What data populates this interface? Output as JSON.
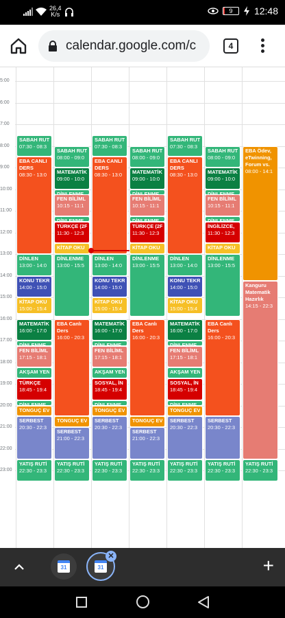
{
  "status": {
    "net_speed_value": "26,4",
    "net_speed_unit": "K/s",
    "battery": "9",
    "battery_level": 0.09,
    "time": "12:48"
  },
  "browser": {
    "url": "calendar.google.com/c",
    "tab_count": "4"
  },
  "hours": [
    "5:00",
    "6:00",
    "7:00",
    "8:00",
    "9:00",
    "10:00",
    "11:00",
    "12:00",
    "13:00",
    "14:00",
    "15:00",
    "16:00",
    "17:00",
    "18:00",
    "19:00",
    "20:00",
    "21:00",
    "22:00",
    "23:00"
  ],
  "events": [
    {
      "col": 0,
      "title": "SABAH RUT",
      "time": "07:30 - 08:3",
      "start": 7.5,
      "end": 8.5,
      "color": "#33b679"
    },
    {
      "col": 0,
      "title": "EBA CANLI",
      "sub": "DERS",
      "time": "08:30 - 13:0",
      "start": 8.5,
      "end": 13.0,
      "color": "#f4511e"
    },
    {
      "col": 0,
      "title": "DİNLEN",
      "time": "13:00 - 14:0",
      "start": 13.0,
      "end": 14.0,
      "color": "#33b679"
    },
    {
      "col": 0,
      "title": "KONU TEKR",
      "time": "14:00 - 15:0",
      "start": 14.0,
      "end": 15.0,
      "color": "#3f51b5"
    },
    {
      "col": 0,
      "title": "KİTAP OKU",
      "time": "15:00 - 15:4",
      "start": 15.0,
      "end": 15.75,
      "color": "#f6bf26"
    },
    {
      "col": 0,
      "title": "MATEMATİK",
      "time": "16:00 - 17:0",
      "start": 16.0,
      "end": 17.0,
      "color": "#0b8043"
    },
    {
      "col": 0,
      "title": "DİNLENME",
      "start": 17.0,
      "end": 17.25,
      "color": "#33b679"
    },
    {
      "col": 0,
      "title": "FEN BİLİML",
      "time": "17:15 - 18:1",
      "start": 17.25,
      "end": 18.25,
      "color": "#e67c73"
    },
    {
      "col": 0,
      "title": "AKŞAM YEN",
      "start": 18.25,
      "end": 18.75,
      "color": "#33b679"
    },
    {
      "col": 0,
      "title": "TÜRKÇE",
      "time": "18:45 - 19:4",
      "start": 18.75,
      "end": 19.75,
      "color": "#d50000"
    },
    {
      "col": 0,
      "title": "DİNLENME",
      "start": 19.75,
      "end": 20.0,
      "color": "#33b679"
    },
    {
      "col": 0,
      "title": "TONGUÇ EV",
      "start": 20.0,
      "end": 20.5,
      "color": "#f09300"
    },
    {
      "col": 0,
      "title": "SERBEST",
      "time": "20:30 - 22:3",
      "start": 20.5,
      "end": 22.5,
      "color": "#7986cb"
    },
    {
      "col": 0,
      "title": "YATIŞ RUTİ",
      "time": "22:30 - 23:3",
      "start": 22.5,
      "end": 23.5,
      "color": "#33b679"
    },
    {
      "col": 1,
      "title": "SABAH RUT",
      "time": "08:00 - 09:0",
      "start": 8.0,
      "end": 9.0,
      "color": "#33b679"
    },
    {
      "col": 1,
      "title": "MATEMATİK",
      "time": "09:00 - 10:0",
      "start": 9.0,
      "end": 10.0,
      "color": "#0b8043"
    },
    {
      "col": 1,
      "title": "DİNLENME",
      "start": 10.0,
      "end": 10.25,
      "color": "#33b679"
    },
    {
      "col": 1,
      "title": "FEN BİLİML",
      "time": "10:15 - 11:1",
      "start": 10.25,
      "end": 11.25,
      "color": "#e67c73"
    },
    {
      "col": 1,
      "title": "DİNLENME",
      "start": 11.25,
      "end": 11.5,
      "color": "#33b679"
    },
    {
      "col": 1,
      "title": "TÜRKÇE (2F",
      "time": "11:30 - 12:3",
      "start": 11.5,
      "end": 12.5,
      "color": "#d50000"
    },
    {
      "col": 1,
      "title": "KİTAP OKU",
      "start": 12.5,
      "end": 13.0,
      "color": "#f6bf26"
    },
    {
      "col": 1,
      "title": "DİNLENME",
      "time": "13:00 - 15:5",
      "start": 13.0,
      "end": 15.9,
      "color": "#33b679"
    },
    {
      "col": 1,
      "title": "EBA Canlı",
      "sub": "Ders",
      "time": "16:00 - 20:3",
      "start": 16.0,
      "end": 20.5,
      "color": "#f4511e"
    },
    {
      "col": 1,
      "title": "TONGUÇ EV",
      "start": 20.5,
      "end": 21.0,
      "color": "#f09300"
    },
    {
      "col": 1,
      "title": "SERBEST",
      "time": "21:00 - 22:3",
      "start": 21.0,
      "end": 22.5,
      "color": "#7986cb"
    },
    {
      "col": 1,
      "title": "YATIŞ RUTİ",
      "time": "22:30 - 23:3",
      "start": 22.5,
      "end": 23.5,
      "color": "#33b679"
    },
    {
      "col": 2,
      "title": "SABAH RUT",
      "time": "07:30 - 08:3",
      "start": 7.5,
      "end": 8.5,
      "color": "#33b679"
    },
    {
      "col": 2,
      "title": "EBA CANLI",
      "sub": "DERS",
      "time": "08:30 - 13:0",
      "start": 8.5,
      "end": 13.0,
      "color": "#f4511e"
    },
    {
      "col": 2,
      "title": "DİNLEN",
      "time": "13:00 - 14:0",
      "start": 13.0,
      "end": 14.0,
      "color": "#33b679"
    },
    {
      "col": 2,
      "title": "KONU TEKR",
      "time": "14:00 - 15:0",
      "start": 14.0,
      "end": 15.0,
      "color": "#3f51b5"
    },
    {
      "col": 2,
      "title": "KİTAP OKU",
      "time": "15:00 - 15:4",
      "start": 15.0,
      "end": 15.75,
      "color": "#f6bf26"
    },
    {
      "col": 2,
      "title": "MATEMATİK",
      "time": "16:00 - 17:0",
      "start": 16.0,
      "end": 17.0,
      "color": "#0b8043"
    },
    {
      "col": 2,
      "title": "DİNLENME",
      "start": 17.0,
      "end": 17.25,
      "color": "#33b679"
    },
    {
      "col": 2,
      "title": "FEN BİLİML",
      "time": "17:15 - 18:1",
      "start": 17.25,
      "end": 18.25,
      "color": "#e67c73"
    },
    {
      "col": 2,
      "title": "AKŞAM YEN",
      "start": 18.25,
      "end": 18.75,
      "color": "#33b679"
    },
    {
      "col": 2,
      "title": "SOSYAL, İN",
      "time": "18:45 - 19:4",
      "start": 18.75,
      "end": 19.75,
      "color": "#d50000"
    },
    {
      "col": 2,
      "title": "DİNLENME",
      "start": 19.75,
      "end": 20.0,
      "color": "#33b679"
    },
    {
      "col": 2,
      "title": "TONGUÇ EV",
      "start": 20.0,
      "end": 20.5,
      "color": "#f09300"
    },
    {
      "col": 2,
      "title": "SERBEST",
      "time": "20:30 - 22:3",
      "start": 20.5,
      "end": 22.5,
      "color": "#7986cb"
    },
    {
      "col": 2,
      "title": "YATIŞ RUTİ",
      "time": "22:30 - 23:3",
      "start": 22.5,
      "end": 23.5,
      "color": "#33b679"
    },
    {
      "col": 3,
      "title": "SABAH RUT",
      "time": "08:00 - 09:0",
      "start": 8.0,
      "end": 9.0,
      "color": "#33b679"
    },
    {
      "col": 3,
      "title": "MATEMATİK",
      "time": "09:00 - 10:0",
      "start": 9.0,
      "end": 10.0,
      "color": "#0b8043"
    },
    {
      "col": 3,
      "title": "DİNLENME",
      "start": 10.0,
      "end": 10.25,
      "color": "#33b679"
    },
    {
      "col": 3,
      "title": "FEN BİLİML",
      "time": "10:15 - 11:1",
      "start": 10.25,
      "end": 11.25,
      "color": "#e67c73"
    },
    {
      "col": 3,
      "title": "DİNLENME",
      "start": 11.25,
      "end": 11.5,
      "color": "#33b679"
    },
    {
      "col": 3,
      "title": "TÜRKÇE (2F",
      "time": "11:30 - 12:3",
      "start": 11.5,
      "end": 12.5,
      "color": "#d50000"
    },
    {
      "col": 3,
      "title": "KİTAP OKU",
      "start": 12.5,
      "end": 13.0,
      "color": "#f6bf26"
    },
    {
      "col": 3,
      "title": "DİNLENME",
      "time": "13:00 - 15:5",
      "start": 13.0,
      "end": 15.9,
      "color": "#33b679"
    },
    {
      "col": 3,
      "title": "EBA Canlı",
      "sub": "Ders",
      "time": "16:00 - 20:3",
      "start": 16.0,
      "end": 20.5,
      "color": "#f4511e"
    },
    {
      "col": 3,
      "title": "TONGUÇ EV",
      "start": 20.5,
      "end": 21.0,
      "color": "#f09300"
    },
    {
      "col": 3,
      "title": "SERBEST",
      "time": "21:00 - 22:3",
      "start": 21.0,
      "end": 22.5,
      "color": "#7986cb"
    },
    {
      "col": 3,
      "title": "YATIŞ RUTİ",
      "time": "22:30 - 23:3",
      "start": 22.5,
      "end": 23.5,
      "color": "#33b679"
    },
    {
      "col": 4,
      "title": "SABAH RUT",
      "time": "07:30 - 08:3",
      "start": 7.5,
      "end": 8.5,
      "color": "#33b679"
    },
    {
      "col": 4,
      "title": "EBA CANLI",
      "sub": "DERS",
      "time": "08:30 - 13:0",
      "start": 8.5,
      "end": 13.0,
      "color": "#f4511e"
    },
    {
      "col": 4,
      "title": "DİNLEN",
      "time": "13:00 - 14:0",
      "start": 13.0,
      "end": 14.0,
      "color": "#33b679"
    },
    {
      "col": 4,
      "title": "KONU TEKR",
      "time": "14:00 - 15:0",
      "start": 14.0,
      "end": 15.0,
      "color": "#3f51b5"
    },
    {
      "col": 4,
      "title": "KİTAP OKU",
      "time": "15:00 - 15:4",
      "start": 15.0,
      "end": 15.75,
      "color": "#f6bf26"
    },
    {
      "col": 4,
      "title": "MATEMATİK",
      "time": "16:00 - 17:0",
      "start": 16.0,
      "end": 17.0,
      "color": "#0b8043"
    },
    {
      "col": 4,
      "title": "DİNLENME",
      "start": 17.0,
      "end": 17.25,
      "color": "#33b679"
    },
    {
      "col": 4,
      "title": "FEN BİLİML",
      "time": "17:15 - 18:1",
      "start": 17.25,
      "end": 18.25,
      "color": "#e67c73"
    },
    {
      "col": 4,
      "title": "AKŞAM YEN",
      "start": 18.25,
      "end": 18.75,
      "color": "#33b679"
    },
    {
      "col": 4,
      "title": "SOSYAL, İN",
      "time": "18:45 - 19:4",
      "start": 18.75,
      "end": 19.75,
      "color": "#d50000"
    },
    {
      "col": 4,
      "title": "DİNLENME",
      "start": 19.75,
      "end": 20.0,
      "color": "#33b679"
    },
    {
      "col": 4,
      "title": "TONGUÇ EV",
      "start": 20.0,
      "end": 20.5,
      "color": "#f09300"
    },
    {
      "col": 4,
      "title": "SERBEST",
      "time": "20:30 - 22:3",
      "start": 20.5,
      "end": 22.5,
      "color": "#7986cb"
    },
    {
      "col": 4,
      "title": "YATIŞ RUTİ",
      "time": "22:30 - 23:3",
      "start": 22.5,
      "end": 23.5,
      "color": "#33b679"
    },
    {
      "col": 5,
      "title": "SABAH RUT",
      "time": "08:00 - 09:0",
      "start": 8.0,
      "end": 9.0,
      "color": "#33b679"
    },
    {
      "col": 5,
      "title": "MATEMATİK",
      "time": "09:00 - 10:0",
      "start": 9.0,
      "end": 10.0,
      "color": "#0b8043"
    },
    {
      "col": 5,
      "title": "DİNLENME",
      "start": 10.0,
      "end": 10.25,
      "color": "#33b679"
    },
    {
      "col": 5,
      "title": "FEN BİLİML",
      "time": "10:15 - 11:1",
      "start": 10.25,
      "end": 11.25,
      "color": "#e67c73"
    },
    {
      "col": 5,
      "title": "DİNLENME",
      "start": 11.25,
      "end": 11.5,
      "color": "#33b679"
    },
    {
      "col": 5,
      "title": "İNGİLİZCE,",
      "time": "11:30 - 12:3",
      "start": 11.5,
      "end": 12.5,
      "color": "#d50000"
    },
    {
      "col": 5,
      "title": "KİTAP OKU",
      "start": 12.5,
      "end": 13.0,
      "color": "#f6bf26"
    },
    {
      "col": 5,
      "title": "DİNLENME",
      "time": "13:00 - 15:5",
      "start": 13.0,
      "end": 15.9,
      "color": "#33b679"
    },
    {
      "col": 5,
      "title": "EBA Canlı",
      "sub": "Ders",
      "time": "16:00 - 20:3",
      "start": 16.0,
      "end": 20.5,
      "color": "#f4511e"
    },
    {
      "col": 5,
      "title": "SERBEST",
      "time": "20:30 - 22:3",
      "start": 20.5,
      "end": 22.5,
      "color": "#7986cb"
    },
    {
      "col": 5,
      "title": "YATIŞ RUTİ",
      "time": "22:30 - 23:3",
      "start": 22.5,
      "end": 23.5,
      "color": "#33b679"
    },
    {
      "col": 6,
      "title": "EBA Ödev, eTwinning, Forum vs.",
      "time": "08:00 - 14:1",
      "start": 8.0,
      "end": 14.25,
      "color": "#f09300",
      "wrap": true
    },
    {
      "col": 6,
      "title": "Kanguru Matematik Hazırlık",
      "time": "14:15 - 22:3",
      "start": 14.25,
      "end": 22.5,
      "color": "#e67c73",
      "wrap": true
    },
    {
      "col": 6,
      "title": "YATIŞ RUTİ",
      "time": "22:30 - 23:3",
      "start": 22.5,
      "end": 23.5,
      "color": "#33b679"
    }
  ],
  "now_hour": 12.8
}
